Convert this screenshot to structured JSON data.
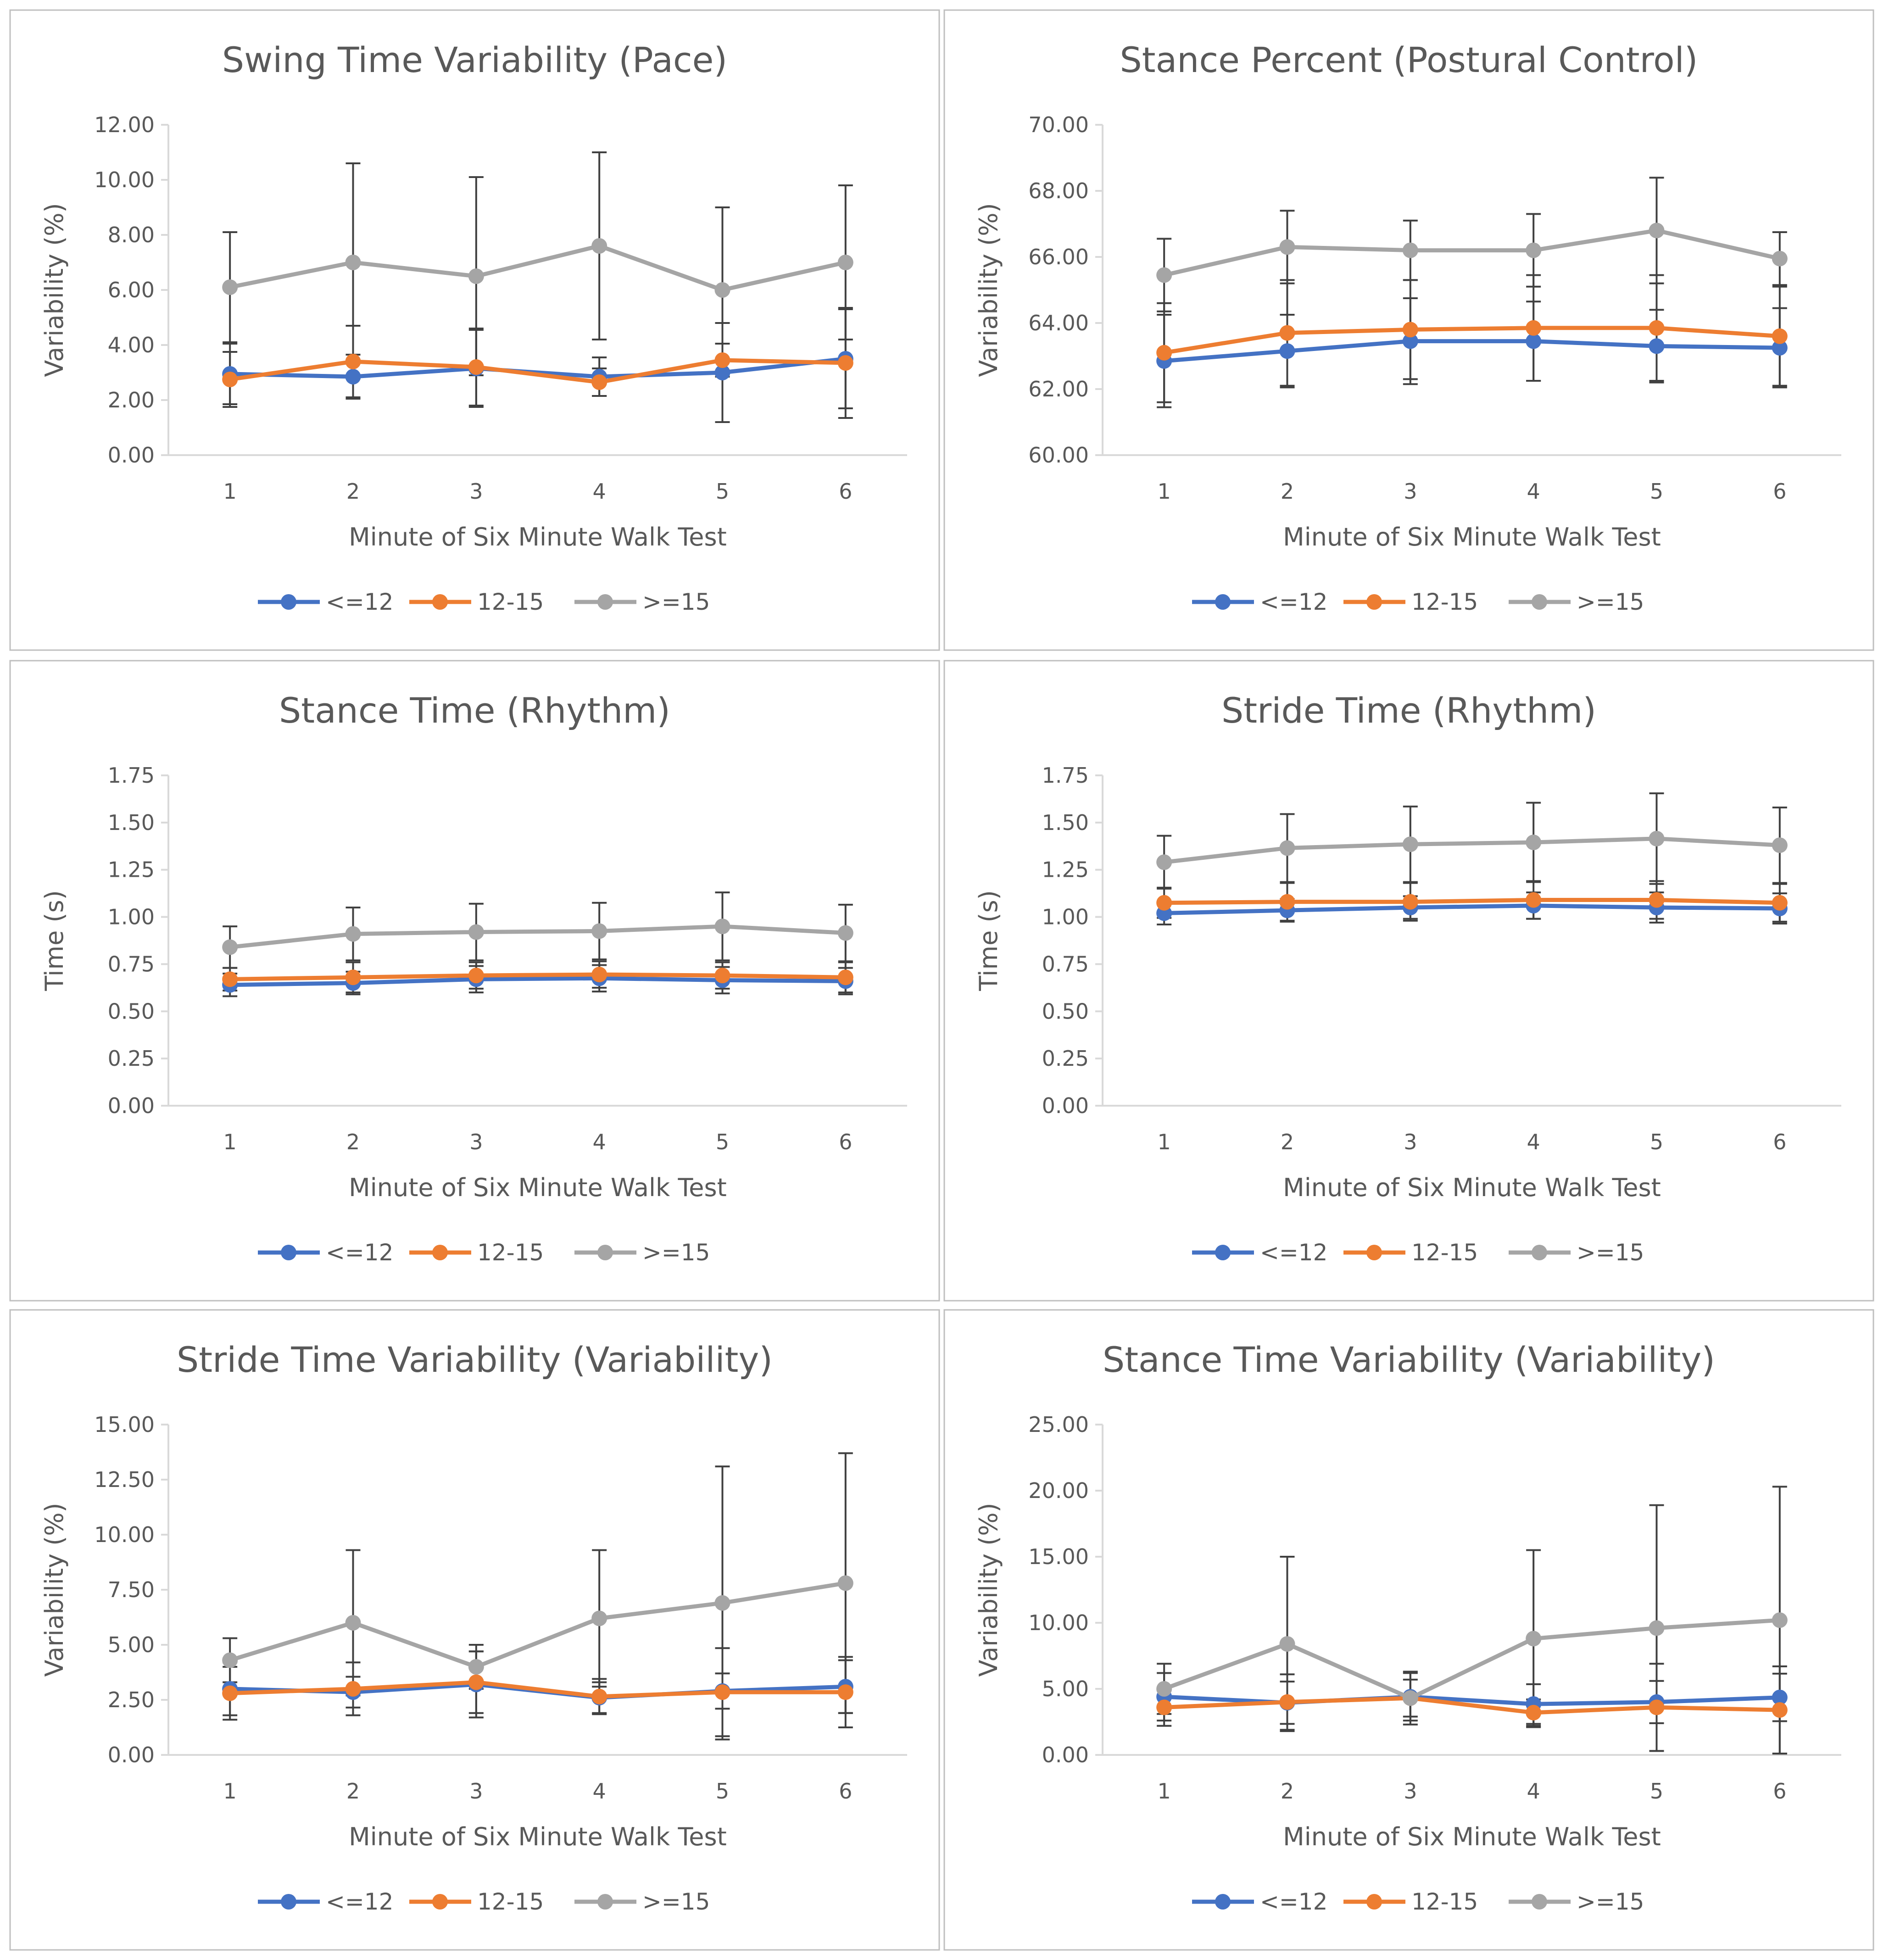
{
  "colors": {
    "le12": "#4472c4",
    "b12_15": "#ed7d31",
    "ge15": "#a5a5a5"
  },
  "chart_data": [
    {
      "type": "line",
      "title": "Swing Time Variability (Pace)",
      "xlabel": "Minute of Six Minute Walk Test",
      "ylabel": "Variability (%)",
      "categories": [
        "1",
        "2",
        "3",
        "4",
        "5",
        "6"
      ],
      "ylim": [
        0,
        12
      ],
      "ystep": 2,
      "tick_decimals": 2,
      "grid": false,
      "legend_position": "bottom",
      "series": [
        {
          "name": "<=12",
          "color": "#4472c4",
          "values": [
            2.95,
            2.85,
            3.15,
            2.85,
            3.0,
            3.5
          ],
          "errors": [
            1.1,
            0.8,
            1.4,
            0.7,
            1.8,
            1.8
          ]
        },
        {
          "name": "12-15",
          "color": "#ed7d31",
          "values": [
            2.75,
            3.4,
            3.2,
            2.65,
            3.45,
            3.35
          ],
          "errors": [
            1.0,
            1.3,
            1.4,
            0.5,
            0.6,
            2.0
          ]
        },
        {
          "name": ">=15",
          "color": "#a5a5a5",
          "values": [
            6.1,
            7.0,
            6.5,
            7.6,
            6.0,
            7.0
          ],
          "errors": [
            2.0,
            3.6,
            3.6,
            3.4,
            3.0,
            2.8
          ]
        }
      ]
    },
    {
      "type": "line",
      "title": "Stance Percent (Postural Control)",
      "xlabel": "Minute of Six Minute Walk Test",
      "ylabel": "Variability (%)",
      "categories": [
        "1",
        "2",
        "3",
        "4",
        "5",
        "6"
      ],
      "ylim": [
        60,
        70
      ],
      "ystep": 2,
      "tick_decimals": 2,
      "grid": false,
      "legend_position": "bottom",
      "series": [
        {
          "name": "<=12",
          "color": "#4472c4",
          "values": [
            62.85,
            63.15,
            63.45,
            63.45,
            63.3,
            63.25
          ],
          "errors": [
            1.4,
            1.1,
            1.3,
            1.2,
            1.1,
            1.2
          ]
        },
        {
          "name": "12-15",
          "color": "#ed7d31",
          "values": [
            63.1,
            63.7,
            63.8,
            63.85,
            63.85,
            63.6
          ],
          "errors": [
            1.5,
            1.6,
            1.5,
            1.6,
            1.6,
            1.5
          ]
        },
        {
          "name": ">=15",
          "color": "#a5a5a5",
          "values": [
            65.45,
            66.3,
            66.2,
            66.2,
            66.8,
            65.95
          ],
          "errors": [
            1.1,
            1.1,
            0.9,
            1.1,
            1.6,
            0.8
          ]
        }
      ]
    },
    {
      "type": "line",
      "title": "Stance Time (Rhythm)",
      "xlabel": "Minute of Six Minute Walk Test",
      "ylabel": "Time (s)",
      "categories": [
        "1",
        "2",
        "3",
        "4",
        "5",
        "6"
      ],
      "ylim": [
        0,
        1.75
      ],
      "ystep": 0.25,
      "tick_decimals": 2,
      "grid": false,
      "legend_position": "bottom",
      "series": [
        {
          "name": "<=12",
          "color": "#4472c4",
          "values": [
            0.64,
            0.65,
            0.67,
            0.675,
            0.665,
            0.66
          ],
          "errors": [
            0.06,
            0.06,
            0.07,
            0.07,
            0.07,
            0.07
          ]
        },
        {
          "name": "12-15",
          "color": "#ed7d31",
          "values": [
            0.67,
            0.68,
            0.69,
            0.695,
            0.69,
            0.68
          ],
          "errors": [
            0.06,
            0.08,
            0.07,
            0.07,
            0.07,
            0.08
          ]
        },
        {
          "name": ">=15",
          "color": "#a5a5a5",
          "values": [
            0.84,
            0.91,
            0.92,
            0.925,
            0.95,
            0.915
          ],
          "errors": [
            0.11,
            0.14,
            0.15,
            0.15,
            0.18,
            0.15
          ]
        }
      ]
    },
    {
      "type": "line",
      "title": "Stride Time (Rhythm)",
      "xlabel": "Minute of Six Minute Walk Test",
      "ylabel": "Time (s)",
      "categories": [
        "1",
        "2",
        "3",
        "4",
        "5",
        "6"
      ],
      "ylim": [
        0,
        1.75
      ],
      "ystep": 0.25,
      "tick_decimals": 2,
      "grid": false,
      "legend_position": "bottom",
      "series": [
        {
          "name": "<=12",
          "color": "#4472c4",
          "values": [
            1.02,
            1.035,
            1.05,
            1.06,
            1.05,
            1.045
          ],
          "errors": [
            0.06,
            0.06,
            0.06,
            0.07,
            0.08,
            0.08
          ]
        },
        {
          "name": "12-15",
          "color": "#ed7d31",
          "values": [
            1.075,
            1.08,
            1.08,
            1.09,
            1.09,
            1.075
          ],
          "errors": [
            0.08,
            0.1,
            0.1,
            0.1,
            0.1,
            0.1
          ]
        },
        {
          "name": ">=15",
          "color": "#a5a5a5",
          "values": [
            1.29,
            1.365,
            1.385,
            1.395,
            1.415,
            1.38
          ],
          "errors": [
            0.14,
            0.18,
            0.2,
            0.21,
            0.24,
            0.2
          ]
        }
      ]
    },
    {
      "type": "line",
      "title": "Stride Time Variability (Variability)",
      "xlabel": "Minute of Six Minute Walk Test",
      "ylabel": "Variability (%)",
      "categories": [
        "1",
        "2",
        "3",
        "4",
        "5",
        "6"
      ],
      "ylim": [
        0,
        15
      ],
      "ystep": 2.5,
      "tick_decimals": 2,
      "grid": false,
      "legend_position": "bottom",
      "series": [
        {
          "name": "<=12",
          "color": "#4472c4",
          "values": [
            3.0,
            2.85,
            3.2,
            2.6,
            2.9,
            3.1
          ],
          "errors": [
            1.2,
            0.7,
            1.5,
            0.7,
            0.8,
            1.2
          ]
        },
        {
          "name": "12-15",
          "color": "#ed7d31",
          "values": [
            2.8,
            3.0,
            3.3,
            2.65,
            2.85,
            2.85
          ],
          "errors": [
            1.2,
            1.2,
            1.4,
            0.8,
            2.0,
            1.6
          ]
        },
        {
          "name": ">=15",
          "color": "#a5a5a5",
          "values": [
            4.3,
            6.0,
            4.0,
            6.2,
            6.9,
            7.8
          ],
          "errors": [
            1.0,
            3.3,
            1.0,
            3.1,
            6.2,
            5.9
          ]
        }
      ]
    },
    {
      "type": "line",
      "title": "Stance Time Variability (Variability)",
      "xlabel": "Minute of Six Minute Walk Test",
      "ylabel": "Variability (%)",
      "categories": [
        "1",
        "2",
        "3",
        "4",
        "5",
        "6"
      ],
      "ylim": [
        0,
        25
      ],
      "ystep": 5,
      "tick_decimals": 2,
      "grid": false,
      "legend_position": "bottom",
      "series": [
        {
          "name": "<=12",
          "color": "#4472c4",
          "values": [
            4.4,
            3.95,
            4.4,
            3.85,
            4.0,
            4.35
          ],
          "errors": [
            1.8,
            1.6,
            1.8,
            1.5,
            1.6,
            1.8
          ]
        },
        {
          "name": "12-15",
          "color": "#ed7d31",
          "values": [
            3.6,
            4.0,
            4.3,
            3.2,
            3.6,
            3.4
          ],
          "errors": [
            1.4,
            2.1,
            1.4,
            1.0,
            3.3,
            3.3
          ]
        },
        {
          "name": ">=15",
          "color": "#a5a5a5",
          "values": [
            5.0,
            8.4,
            4.3,
            8.8,
            9.6,
            10.2
          ],
          "errors": [
            1.9,
            6.6,
            2.0,
            6.7,
            9.3,
            10.1
          ]
        }
      ]
    }
  ]
}
